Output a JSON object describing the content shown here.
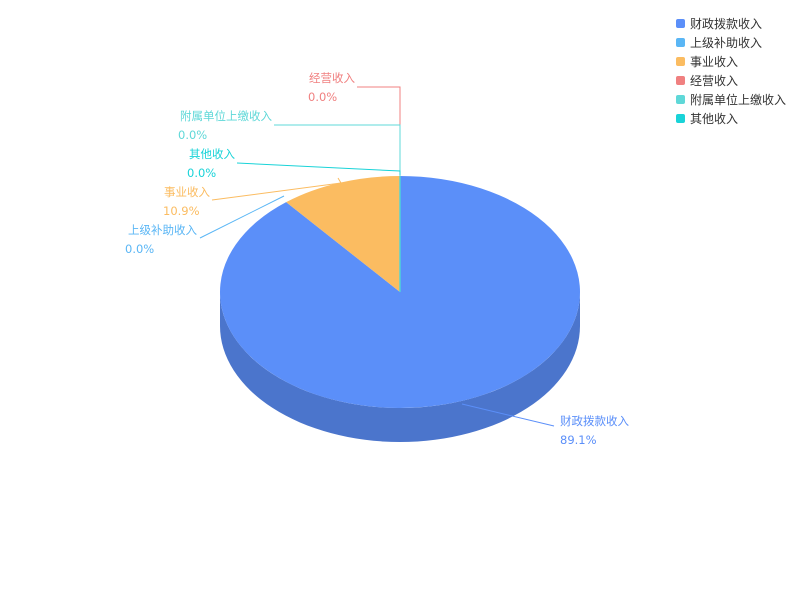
{
  "chart_data": {
    "type": "pie",
    "style": "3d",
    "legend_position": "top-right",
    "categories": [
      "财政拨款收入",
      "上级补助收入",
      "事业收入",
      "经营收入",
      "附属单位上缴收入",
      "其他收入"
    ],
    "values": [
      89.1,
      0.0,
      10.9,
      0.0,
      0.0,
      0.0
    ],
    "value_labels": [
      "89.1%",
      "0.0%",
      "10.9%",
      "0.0%",
      "0.0%",
      "0.0%"
    ],
    "colors": [
      "#5b8ff9",
      "#5ab6f5",
      "#fbbc61",
      "#f08080",
      "#5fd8d8",
      "#19d3d8"
    ]
  }
}
